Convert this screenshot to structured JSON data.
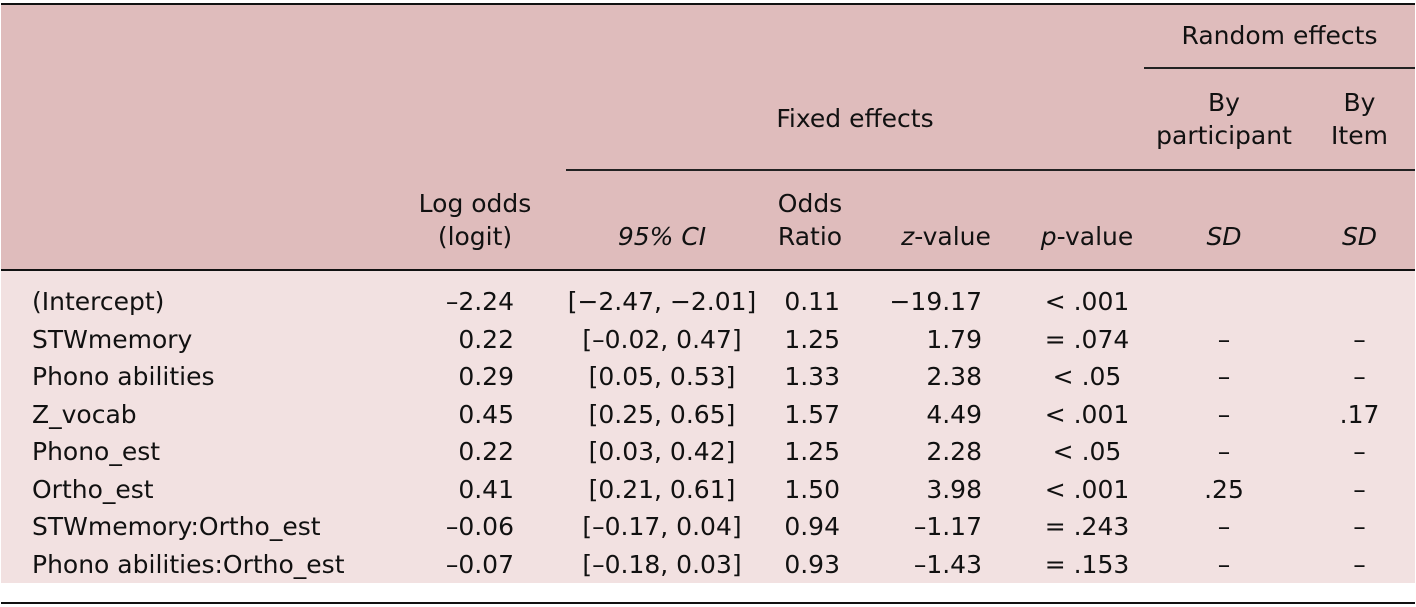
{
  "header": {
    "random_effects": "Random effects",
    "fixed_effects": "Fixed effects",
    "by_participant_line1": "By",
    "by_participant_line2": "participant",
    "by_item_line1": "By",
    "by_item_line2": "Item",
    "log_odds_line1": "Log odds",
    "log_odds_line2": "(logit)",
    "ci": "95% CI",
    "odds_line1": "Odds",
    "odds_line2": "Ratio",
    "z_italic": "z",
    "z_rest": "-value",
    "p_italic": "p",
    "p_rest": "-value",
    "sd_participant": "SD",
    "sd_item": "SD"
  },
  "rows": [
    {
      "name": "(Intercept)",
      "log_odds": "–2.24",
      "ci": "[−2.47, −2.01]",
      "odds_ratio": "0.11",
      "z": "−19.17",
      "p": "< .001",
      "sd_participant": "",
      "sd_item": ""
    },
    {
      "name": "STWmemory",
      "log_odds": "0.22",
      "ci": "[–0.02, 0.47]",
      "odds_ratio": "1.25",
      "z": "1.79",
      "p": "= .074",
      "sd_participant": "–",
      "sd_item": "–"
    },
    {
      "name": "Phono abilities",
      "log_odds": "0.29",
      "ci": "[0.05, 0.53]",
      "odds_ratio": "1.33",
      "z": "2.38",
      "p": "< .05",
      "sd_participant": "–",
      "sd_item": "–"
    },
    {
      "name": "Z_vocab",
      "log_odds": "0.45",
      "ci": "[0.25, 0.65]",
      "odds_ratio": "1.57",
      "z": "4.49",
      "p": "< .001",
      "sd_participant": "–",
      "sd_item": ".17"
    },
    {
      "name": "Phono_est",
      "log_odds": "0.22",
      "ci": "[0.03, 0.42]",
      "odds_ratio": "1.25",
      "z": "2.28",
      "p": "< .05",
      "sd_participant": "–",
      "sd_item": "–"
    },
    {
      "name": "Ortho_est",
      "log_odds": "0.41",
      "ci": "[0.21, 0.61]",
      "odds_ratio": "1.50",
      "z": "3.98",
      "p": "< .001",
      "sd_participant": ".25",
      "sd_item": "–"
    },
    {
      "name": "STWmemory:Ortho_est",
      "log_odds": "–0.06",
      "ci": "[–0.17, 0.04]",
      "odds_ratio": "0.94",
      "z": "–1.17",
      "p": "= .243",
      "sd_participant": "–",
      "sd_item": "–"
    },
    {
      "name": "Phono abilities:Ortho_est",
      "log_odds": "–0.07",
      "ci": "[–0.18, 0.03]",
      "odds_ratio": "0.93",
      "z": "–1.43",
      "p": "= .153",
      "sd_participant": "–",
      "sd_item": "–"
    }
  ],
  "colors": {
    "header_bg": "#dfbcbc",
    "body_bg": "#f2e1e1",
    "rule": "#111111"
  }
}
